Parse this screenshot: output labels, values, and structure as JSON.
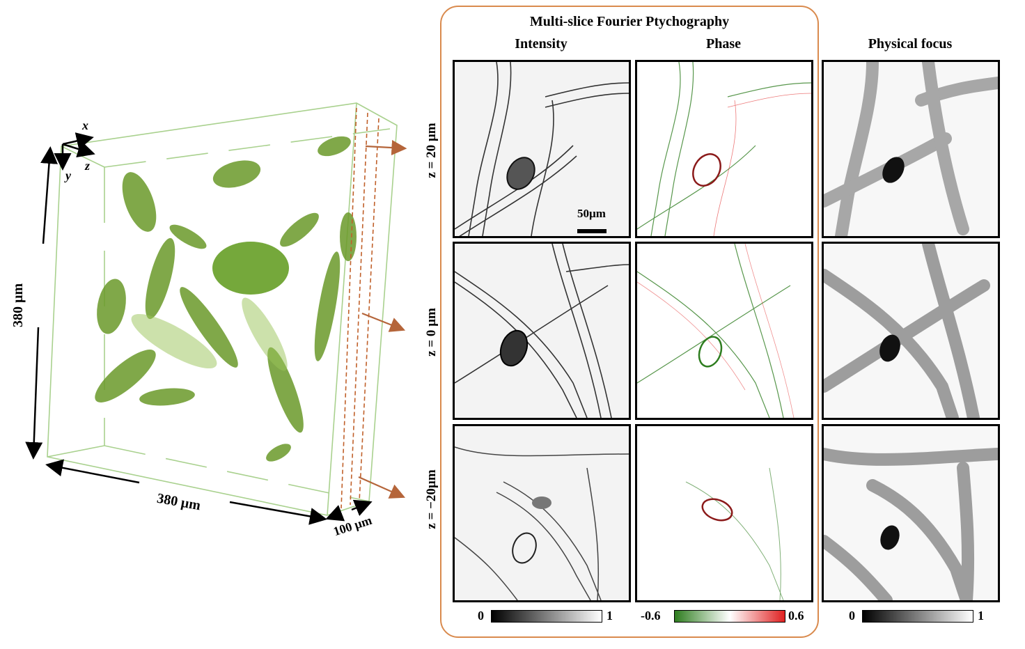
{
  "figure": {
    "volume": {
      "axis_x": "x",
      "axis_y": "y",
      "axis_z": "z",
      "dim_height": "380 µm",
      "dim_width": "380 µm",
      "dim_depth": "100 µm"
    },
    "fp_panel": {
      "title": "Multi-slice Fourier Ptychography",
      "col_intensity": "Intensity",
      "col_phase": "Phase"
    },
    "physical_col": "Physical focus",
    "row_labels": [
      "z = 20 µm",
      "z = 0 µm",
      "z = −20µm"
    ],
    "scale_bar": "50µm",
    "colorbars": {
      "intensity": {
        "min": "0",
        "max": "1"
      },
      "phase": {
        "min": "-0.6",
        "max": "0.6"
      },
      "physical": {
        "min": "0",
        "max": "1"
      }
    },
    "colors": {
      "accent_orange": "#d98a4d",
      "box_green": "#a9d18e",
      "cell_green": "#5a8a22",
      "phase_green": "#2e7d1f",
      "phase_red": "#e02020"
    }
  }
}
